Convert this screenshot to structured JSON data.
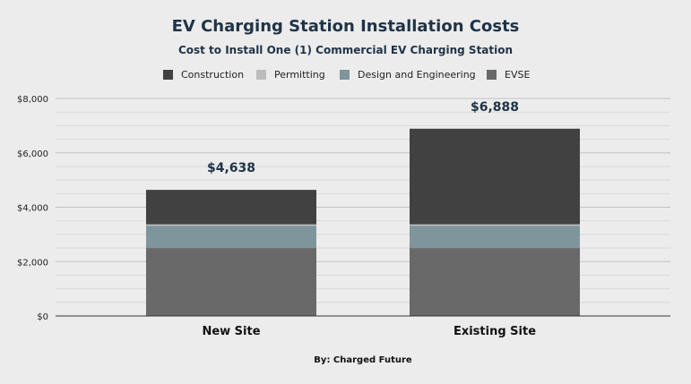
{
  "chart_data": {
    "type": "bar",
    "stacked": true,
    "title": "EV Charging Station Installation Costs",
    "subtitle": "Cost to Install One (1) Commercial EV Charging Station",
    "footer": "By: Charged Future",
    "categories": [
      "New Site",
      "Existing Site"
    ],
    "series": [
      {
        "name": "EVSE",
        "values": [
          2500,
          2500
        ],
        "color": "#696969"
      },
      {
        "name": "Design and Engineering",
        "values": [
          820,
          820
        ],
        "color": "#7f959c"
      },
      {
        "name": "Permitting",
        "values": [
          50,
          50
        ],
        "color": "#bcbcbc"
      },
      {
        "name": "Construction",
        "values": [
          1268,
          3518
        ],
        "color": "#414141"
      }
    ],
    "legend_order": [
      "Construction",
      "Permitting",
      "Design and Engineering",
      "EVSE"
    ],
    "totals": [
      "$4,638",
      "$6,888"
    ],
    "ylim": [
      0,
      8000
    ],
    "yticks": [
      {
        "value": 0,
        "label": "$0"
      },
      {
        "value": 2000,
        "label": "$2,000"
      },
      {
        "value": 4000,
        "label": "$4,000"
      },
      {
        "value": 6000,
        "label": "$6,000"
      },
      {
        "value": 8000,
        "label": "$8,000"
      }
    ],
    "minor_grid_step": 500,
    "grid": true,
    "legend_position": "top"
  }
}
